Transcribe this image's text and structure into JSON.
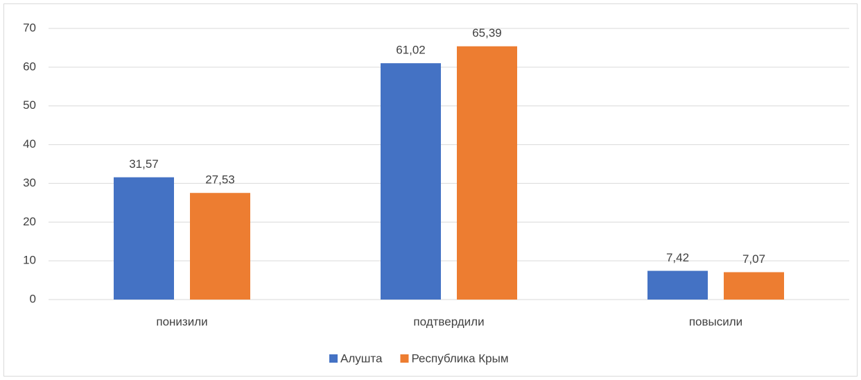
{
  "chart_data": {
    "type": "bar",
    "categories": [
      "понизили",
      "подтвердили",
      "повысили"
    ],
    "series": [
      {
        "name": "Алушта",
        "color": "#4472c4",
        "values": [
          31.57,
          61.02,
          7.42
        ],
        "value_labels": [
          "31,57",
          "61,02",
          "7,42"
        ]
      },
      {
        "name": "Республика Крым",
        "color": "#ed7d31",
        "values": [
          27.53,
          65.39,
          7.07
        ],
        "value_labels": [
          "27,53",
          "65,39",
          "7,07"
        ]
      }
    ],
    "ylim": [
      0,
      70
    ],
    "yticks": [
      0,
      10,
      20,
      30,
      40,
      50,
      60,
      70
    ],
    "grid": true,
    "legend": "bottom"
  }
}
